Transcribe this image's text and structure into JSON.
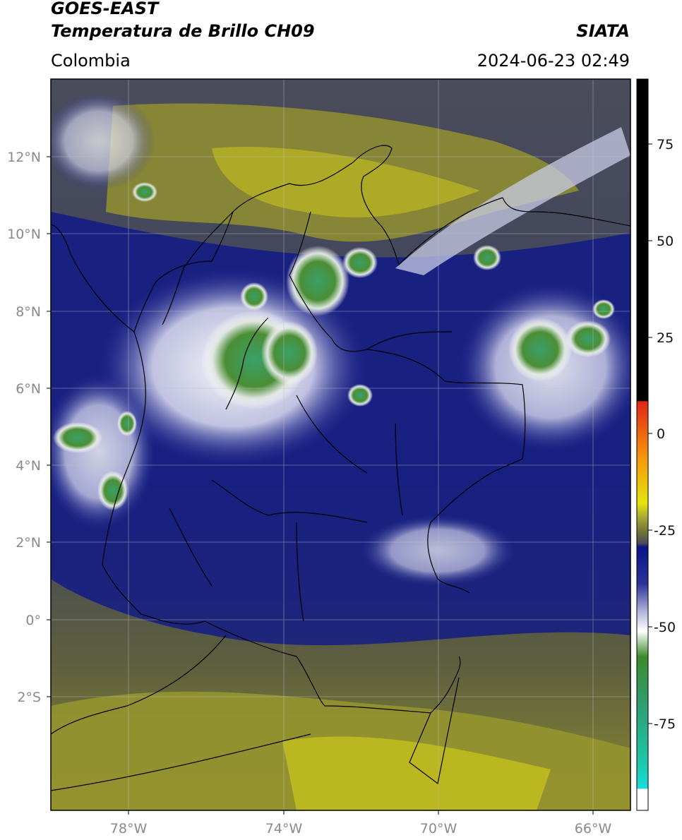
{
  "header": {
    "satellite": "GOES-EAST",
    "product": "Temperatura de Brillo CH09",
    "region": "Colombia",
    "agency": "SIATA",
    "datetime": "2024-06-23 02:49"
  },
  "map": {
    "lat_ticks": [
      "12°N",
      "10°N",
      "8°N",
      "6°N",
      "4°N",
      "2°N",
      "0°",
      "2°S"
    ],
    "lon_ticks": [
      "78°W",
      "74°W",
      "70°W",
      "66°W"
    ]
  },
  "colorbar": {
    "ticks": [
      "75",
      "50",
      "25",
      "0",
      "-25",
      "-50",
      "-75"
    ],
    "colors": {
      "black": "#000000",
      "red": "#e0261a",
      "orange": "#f59a0c",
      "yellow": "#e7e40c",
      "olive": "#a6a534",
      "dark_gray": "#4a4a56",
      "navy": "#0b1488",
      "white": "#ffffff",
      "green": "#3d8a2c",
      "teal": "#1fc4a6",
      "cyan": "#18dcdc"
    }
  }
}
